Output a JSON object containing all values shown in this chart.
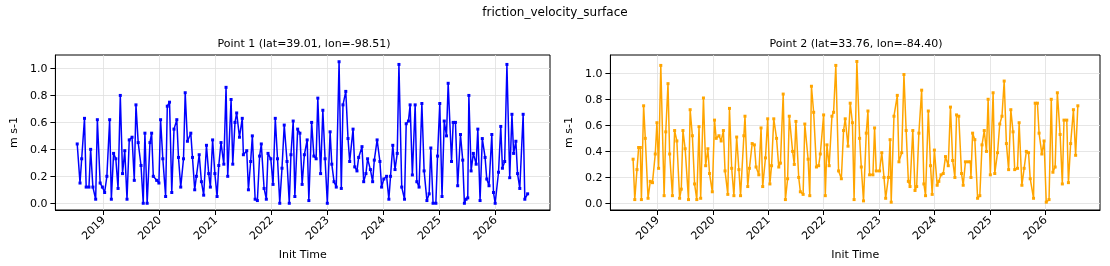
{
  "chart_data": [
    {
      "type": "line",
      "title": "Point 1 (lat=39.01, lon=-98.51)",
      "xlabel": "Init Time",
      "ylabel": "m s-1",
      "annotations": [
        "friction_velocity_surface"
      ],
      "grid": true,
      "marker": "square",
      "line_style": "solid",
      "xlim": [
        2018.14,
        2026.98
      ],
      "xticks": [
        2019,
        2020,
        2021,
        2022,
        2023,
        2024,
        2025,
        2026
      ],
      "ylim": [
        -0.05,
        1.1
      ],
      "yticks": [
        {
          "value": 0,
          "label": "0.0"
        },
        {
          "value": 0.2,
          "label": "0.2"
        },
        {
          "value": 0.4,
          "label": "0.4"
        },
        {
          "value": 0.6,
          "label": "0.6"
        },
        {
          "value": 0.8,
          "label": "0.8"
        },
        {
          "value": 1,
          "label": "1.0"
        }
      ],
      "x": [
        2018.53,
        2018.58,
        2018.61,
        2018.66,
        2018.69,
        2018.74,
        2018.77,
        2018.81,
        2018.86,
        2018.89,
        2018.94,
        2018.98,
        2019.02,
        2019.06,
        2019.11,
        2019.14,
        2019.18,
        2019.22,
        2019.26,
        2019.3,
        2019.34,
        2019.38,
        2019.42,
        2019.46,
        2019.51,
        2019.55,
        2019.58,
        2019.62,
        2019.67,
        2019.71,
        2019.74,
        2019.78,
        2019.83,
        2019.86,
        2019.89,
        2019.95,
        2019.99,
        2020.02,
        2020.06,
        2020.11,
        2020.14,
        2020.18,
        2020.22,
        2020.26,
        2020.31,
        2020.34,
        2020.38,
        2020.43,
        2020.46,
        2020.5,
        2020.56,
        2020.59,
        2020.63,
        2020.66,
        2020.71,
        2020.75,
        2020.79,
        2020.84,
        2020.88,
        2020.91,
        2020.95,
        2020.99,
        2021.03,
        2021.06,
        2021.1,
        2021.15,
        2021.19,
        2021.22,
        2021.28,
        2021.31,
        2021.35,
        2021.38,
        2021.43,
        2021.48,
        2021.5,
        2021.56,
        2021.59,
        2021.63,
        2021.66,
        2021.71,
        2021.75,
        2021.79,
        2021.82,
        2021.87,
        2021.91,
        2021.94,
        2021.99,
        2022.03,
        2022.07,
        2022.11,
        2022.15,
        2022.19,
        2022.23,
        2022.28,
        2022.32,
        2022.35,
        2022.39,
        2022.42,
        2022.47,
        2022.51,
        2022.55,
        2022.59,
        2022.64,
        2022.67,
        2022.72,
        2022.76,
        2022.8,
        2022.83,
        2022.88,
        2022.92,
        2022.96,
        2023.0,
        2023.05,
        2023.08,
        2023.12,
        2023.16,
        2023.21,
        2023.25,
        2023.28,
        2023.33,
        2023.37,
        2023.4,
        2023.46,
        2023.49,
        2023.53,
        2023.56,
        2023.62,
        2023.65,
        2023.69,
        2023.72,
        2023.77,
        2023.81,
        2023.84,
        2023.89,
        2023.94,
        2023.97,
        2024.01,
        2024.06,
        2024.1,
        2024.13,
        2024.17,
        2024.21,
        2024.25,
        2024.28,
        2024.33,
        2024.38,
        2024.41,
        2024.45,
        2024.48,
        2024.52,
        2024.57,
        2024.6,
        2024.64,
        2024.69,
        2024.73,
        2024.78,
        2024.82,
        2024.85,
        2024.89,
        2024.94,
        2024.97,
        2025.01,
        2025.05,
        2025.09,
        2025.13,
        2025.16,
        2025.22,
        2025.25,
        2025.29,
        2025.33,
        2025.38,
        2025.42,
        2025.45,
        2025.48,
        2025.51,
        2025.53,
        2025.57,
        2025.61,
        2025.66,
        2025.69,
        2025.73,
        2025.77,
        2025.82,
        2025.85,
        2025.89,
        2025.94,
        2025.97,
        2026.0,
        2026.06,
        2026.1,
        2026.13,
        2026.17,
        2026.21,
        2026.26,
        2026.3,
        2026.33,
        2026.37,
        2026.4,
        2026.44,
        2026.5,
        2026.53,
        2026.58
      ],
      "series": [
        {
          "color": "#0000ff",
          "values": [
            0.44,
            0.15,
            0.33,
            0.63,
            0.12,
            0.12,
            0.4,
            0.12,
            0.03,
            0.62,
            0.15,
            0.12,
            0.08,
            0.2,
            0.62,
            0.03,
            0.37,
            0.33,
            0.11,
            0.8,
            0.22,
            0.39,
            0.03,
            0.47,
            0.49,
            0.17,
            0.73,
            0.45,
            0.28,
            0.0,
            0.52,
            0.0,
            0.45,
            0.52,
            0.2,
            0.17,
            0.15,
            0.62,
            0.33,
            0.05,
            0.72,
            0.75,
            0.08,
            0.55,
            0.62,
            0.34,
            0.12,
            0.33,
            0.82,
            0.46,
            0.52,
            0.34,
            0.1,
            0.2,
            0.36,
            0.16,
            0.06,
            0.43,
            0.22,
            0.12,
            0.47,
            0.22,
            0.05,
            0.28,
            0.45,
            0.29,
            0.86,
            0.2,
            0.77,
            0.29,
            0.6,
            0.67,
            0.49,
            0.63,
            0.36,
            0.39,
            0.1,
            0.31,
            0.5,
            0.03,
            0.02,
            0.35,
            0.44,
            0.11,
            0.03,
            0.37,
            0.33,
            0.14,
            0.63,
            0.33,
            0.0,
            0.26,
            0.58,
            0.31,
            0.0,
            0.36,
            0.61,
            0.05,
            0.55,
            0.52,
            0.14,
            0.36,
            0.47,
            0.02,
            0.6,
            0.35,
            0.33,
            0.78,
            0.22,
            0.69,
            0.33,
            0.0,
            0.53,
            0.29,
            0.16,
            0.12,
            1.05,
            0.11,
            0.73,
            0.83,
            0.48,
            0.31,
            0.55,
            0.27,
            0.24,
            0.34,
            0.42,
            0.16,
            0.22,
            0.33,
            0.25,
            0.16,
            0.32,
            0.47,
            0.31,
            0.12,
            0.18,
            0.2,
            0.03,
            0.2,
            0.43,
            0.25,
            0.37,
            1.03,
            0.12,
            0.03,
            0.59,
            0.61,
            0.73,
            0.21,
            0.73,
            0.16,
            0.12,
            0.74,
            0.24,
            0.02,
            0.07,
            0.41,
            0.0,
            0.0,
            0.35,
            0.74,
            0.05,
            0.61,
            0.5,
            0.89,
            0.31,
            0.6,
            0.6,
            0.13,
            0.51,
            0.32,
            0.0,
            0.03,
            0.04,
            0.8,
            0.24,
            0.37,
            0.29,
            0.55,
            0.02,
            0.48,
            0.34,
            0.18,
            0.13,
            0.51,
            0.08,
            0.0,
            0.23,
            0.57,
            0.26,
            0.31,
            1.03,
            0.19,
            0.66,
            0.37,
            0.46,
            0.22,
            0.11,
            0.66,
            0.03,
            0.07
          ]
        }
      ]
    },
    {
      "type": "line",
      "title": "Point 2 (lat=33.76, lon=-84.40)",
      "xlabel": "Init Time",
      "ylabel": "m s-1",
      "grid": true,
      "marker": "square",
      "line_style": "solid",
      "xlim": [
        2018.15,
        2026.99
      ],
      "xticks": [
        2019,
        2020,
        2021,
        2022,
        2023,
        2024,
        2025,
        2026
      ],
      "ylim": [
        -0.05,
        1.14
      ],
      "yticks": [
        {
          "value": 0,
          "label": "0.0"
        },
        {
          "value": 0.2,
          "label": "0.2"
        },
        {
          "value": 0.4,
          "label": "0.4"
        },
        {
          "value": 0.6,
          "label": "0.6"
        },
        {
          "value": 0.8,
          "label": "0.8"
        },
        {
          "value": 1,
          "label": "1.0"
        }
      ],
      "x": [
        2018.56,
        2018.59,
        2018.63,
        2018.66,
        2018.69,
        2018.71,
        2018.75,
        2018.78,
        2018.83,
        2018.87,
        2018.91,
        2018.96,
        2018.99,
        2019.02,
        2019.06,
        2019.12,
        2019.15,
        2019.19,
        2019.22,
        2019.27,
        2019.31,
        2019.35,
        2019.4,
        2019.43,
        2019.46,
        2019.5,
        2019.56,
        2019.59,
        2019.63,
        2019.67,
        2019.71,
        2019.75,
        2019.78,
        2019.83,
        2019.87,
        2019.91,
        2019.94,
        2019.99,
        2020.03,
        2020.06,
        2020.11,
        2020.15,
        2020.19,
        2020.22,
        2020.27,
        2020.3,
        2020.34,
        2020.38,
        2020.43,
        2020.47,
        2020.5,
        2020.56,
        2020.58,
        2020.63,
        2020.66,
        2020.71,
        2020.75,
        2020.78,
        2020.83,
        2020.87,
        2020.9,
        2020.95,
        2020.99,
        2021.03,
        2021.06,
        2021.1,
        2021.15,
        2021.19,
        2021.22,
        2021.27,
        2021.31,
        2021.35,
        2021.38,
        2021.44,
        2021.47,
        2021.5,
        2021.55,
        2021.58,
        2021.63,
        2021.66,
        2021.72,
        2021.75,
        2021.78,
        2021.82,
        2021.87,
        2021.91,
        2021.94,
        2022.0,
        2022.03,
        2022.06,
        2022.1,
        2022.15,
        2022.18,
        2022.22,
        2022.27,
        2022.32,
        2022.36,
        2022.39,
        2022.44,
        2022.48,
        2022.52,
        2022.55,
        2022.6,
        2022.65,
        2022.68,
        2022.72,
        2022.77,
        2022.8,
        2022.83,
        2022.89,
        2022.92,
        2022.95,
        2023.01,
        2023.05,
        2023.09,
        2023.12,
        2023.17,
        2023.2,
        2023.22,
        2023.27,
        2023.33,
        2023.36,
        2023.41,
        2023.45,
        2023.49,
        2023.53,
        2023.56,
        2023.61,
        2023.65,
        2023.68,
        2023.72,
        2023.77,
        2023.81,
        2023.84,
        2023.89,
        2023.93,
        2023.96,
        2024.0,
        2024.05,
        2024.08,
        2024.12,
        2024.16,
        2024.2,
        2024.25,
        2024.29,
        2024.33,
        2024.37,
        2024.4,
        2024.44,
        2024.49,
        2024.52,
        2024.56,
        2024.61,
        2024.65,
        2024.66,
        2024.69,
        2024.73,
        2024.78,
        2024.82,
        2024.86,
        2024.9,
        2024.94,
        2024.97,
        2025.01,
        2025.06,
        2025.09,
        2025.14,
        2025.18,
        2025.22,
        2025.26,
        2025.3,
        2025.34,
        2025.38,
        2025.42,
        2025.45,
        2025.5,
        2025.53,
        2025.58,
        2025.62,
        2025.66,
        2025.7,
        2025.73,
        2025.79,
        2025.82,
        2025.86,
        2025.89,
        2025.94,
        2025.98,
        2026.02,
        2026.07,
        2026.11,
        2026.14,
        2026.18,
        2026.22,
        2026.27,
        2026.31,
        2026.34,
        2026.39,
        2026.42,
        2026.46,
        2026.51,
        2026.55,
        2026.59
      ],
      "series": [
        {
          "color": "#ffa500",
          "values": [
            0.34,
            0.03,
            0.26,
            0.43,
            0.43,
            0.03,
            0.75,
            0.5,
            0.04,
            0.17,
            0.16,
            0.38,
            0.62,
            0.27,
            1.06,
            0.06,
            0.55,
            0.92,
            0.38,
            0.06,
            0.56,
            0.48,
            0.04,
            0.11,
            0.56,
            0.42,
            0.03,
            0.72,
            0.52,
            0.15,
            0.03,
            0.59,
            0.04,
            0.81,
            0.29,
            0.42,
            0.23,
            0.09,
            0.64,
            0.5,
            0.52,
            0.48,
            0.56,
            0.25,
            0.07,
            0.73,
            0.27,
            0.06,
            0.51,
            0.26,
            0.06,
            0.52,
            0.67,
            0.13,
            0.27,
            0.46,
            0.45,
            0.28,
            0.22,
            0.58,
            0.13,
            0.35,
            0.65,
            0.15,
            0.29,
            0.65,
            0.5,
            0.28,
            0.31,
            0.84,
            0.03,
            0.19,
            0.67,
            0.4,
            0.3,
            0.63,
            0.2,
            0.09,
            0.07,
            0.61,
            0.34,
            0.06,
            0.9,
            0.7,
            0.28,
            0.29,
            0.38,
            0.68,
            0.06,
            0.45,
            0.29,
            0.67,
            0.7,
            1.06,
            0.25,
            0.19,
            0.56,
            0.65,
            0.44,
            0.77,
            0.62,
            0.03,
            1.09,
            0.5,
            0.28,
            0.02,
            0.54,
            0.71,
            0.22,
            0.22,
            0.58,
            0.25,
            0.25,
            0.39,
            0.2,
            0.04,
            0.2,
            0.49,
            0.01,
            0.67,
            0.83,
            0.32,
            0.39,
            0.99,
            0.56,
            0.17,
            0.13,
            0.56,
            0.1,
            0.13,
            0.54,
            0.87,
            0.15,
            0.06,
            0.71,
            0.29,
            0.07,
            0.41,
            0.14,
            0.17,
            0.22,
            0.23,
            0.36,
            0.29,
            0.74,
            0.33,
            0.2,
            0.68,
            0.67,
            0.23,
            0.14,
            0.32,
            0.32,
            0.32,
            0.2,
            0.54,
            0.49,
            0.04,
            0.06,
            0.45,
            0.56,
            0.4,
            0.8,
            0.22,
            0.85,
            0.23,
            0.39,
            0.61,
            0.67,
            0.94,
            0.46,
            0.26,
            0.72,
            0.55,
            0.26,
            0.27,
            0.62,
            0.14,
            0.27,
            0.4,
            0.39,
            0.19,
            0.04,
            0.77,
            0.77,
            0.54,
            0.38,
            0.48,
            0.01,
            0.03,
            0.8,
            0.24,
            0.28,
            0.85,
            0.53,
            0.15,
            0.64,
            0.64,
            0.16,
            0.46,
            0.72,
            0.37,
            0.75
          ]
        }
      ]
    }
  ]
}
